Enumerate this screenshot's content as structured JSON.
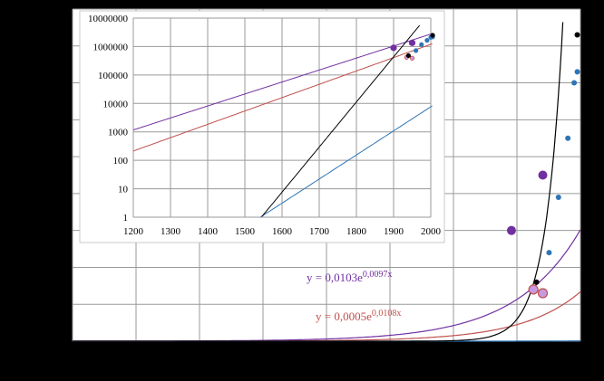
{
  "chart_data": [
    {
      "type": "scatter",
      "id": "main",
      "title": "",
      "xlabel": "",
      "ylabel": "",
      "grid": true,
      "legend": "none",
      "colors": {
        "background": "#ffffff",
        "grid": "#9a9a9a"
      },
      "xlim": [
        1200,
        2010
      ],
      "ylim": [
        0,
        9000000
      ],
      "series": [
        {
          "color": "#7030a0",
          "points": [
            [
              1900,
              3000000
            ],
            [
              1950,
              4500000
            ]
          ]
        },
        {
          "color": "#c0504d",
          "points": [
            [
              1935,
              1400000
            ],
            [
              1950,
              1300000
            ]
          ]
        },
        {
          "color": "#2e75b6",
          "points": [
            [
              1960,
              2400000
            ],
            [
              1975,
              3900000
            ],
            [
              1990,
              5500000
            ],
            [
              2000,
              7000000
            ],
            [
              2005,
              7300000
            ]
          ]
        },
        {
          "color": "#000000",
          "points": [
            [
              1940,
              1600000
            ],
            [
              2005,
              8300000
            ]
          ]
        }
      ],
      "trendlines": [
        {
          "color": "#7030a0",
          "a": 0.0103,
          "b": 0.0097,
          "label": "y = 0,0103e",
          "exponent": "0,0097x"
        },
        {
          "color": "#c0504d",
          "a": 0.0005,
          "b": 0.0108,
          "label": "y = 0,0005e",
          "exponent": "0,0108x"
        },
        {
          "color": "#2e75b6",
          "a": 8.8e-14,
          "b": 0.0195,
          "label": "",
          "exponent": ""
        },
        {
          "color": "#000000",
          "a": 3.3e-25,
          "b": 0.0365,
          "label": "",
          "exponent": ""
        }
      ]
    },
    {
      "type": "scatter",
      "id": "inset",
      "title": "",
      "xlabel": "",
      "ylabel": "",
      "yscale": "log",
      "grid": true,
      "legend": "none",
      "xlim": [
        1200,
        2000
      ],
      "ylim": [
        1,
        10000000
      ],
      "x_ticks": [
        "1200",
        "1300",
        "1400",
        "1500",
        "1600",
        "1700",
        "1800",
        "1900",
        "2000"
      ],
      "y_ticks": [
        "1",
        "10",
        "100",
        "1000",
        "10000",
        "100000",
        "1000000",
        "10000000"
      ]
    }
  ]
}
